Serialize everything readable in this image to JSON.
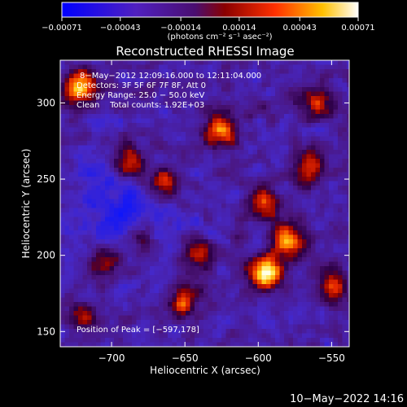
{
  "chart_data": {
    "type": "heatmap",
    "title": "Reconstructed RHESSI Image",
    "xlabel": "Heliocentric X (arcsec)",
    "ylabel": "Heliocentric Y (arcsec)",
    "xlim": [
      -735,
      -538
    ],
    "ylim": [
      140,
      328
    ],
    "x_ticks": [
      -700,
      -650,
      -600,
      -550
    ],
    "x_tick_labels": [
      "−700",
      "−650",
      "−600",
      "−550"
    ],
    "y_ticks": [
      150,
      200,
      250,
      300
    ],
    "y_tick_labels": [
      "150",
      "200",
      "250",
      "300"
    ],
    "colorbar": {
      "min": -0.00071,
      "max": 0.00071,
      "ticks": [
        -0.00071,
        -0.00043,
        -0.00014,
        0.00014,
        0.00043,
        0.00071
      ],
      "tick_labels": [
        "−0.00071",
        "−0.00043",
        "−0.00014",
        "0.00014",
        "0.00043",
        "0.00071"
      ],
      "unit_label": "(photons cm⁻² s⁻¹ asec⁻²)",
      "colormap": "blue-purple-red-yellow-white"
    },
    "annotations": [
      "8−May−2012 12:09:16.000 to 12:11:04.000",
      "Detectors: 3F 5F 6F 7F 8F, Att 0",
      "Energy Range: 25.0 − 50.0 keV",
      "Clean    Total counts: 1.92E+03"
    ],
    "peak_label": "Position of Peak = [−597,178]",
    "peak": [
      -597,
      178
    ],
    "sources": [
      {
        "x": -595,
        "y": 188,
        "value": 1.0
      },
      {
        "x": -580,
        "y": 210,
        "value": 0.8
      },
      {
        "x": -722,
        "y": 310,
        "value": 0.9
      },
      {
        "x": -625,
        "y": 282,
        "value": 0.7
      },
      {
        "x": -665,
        "y": 247,
        "value": 0.6
      },
      {
        "x": -688,
        "y": 262,
        "value": 0.6
      },
      {
        "x": -595,
        "y": 235,
        "value": 0.55
      },
      {
        "x": -565,
        "y": 258,
        "value": 0.55
      },
      {
        "x": -640,
        "y": 200,
        "value": 0.5
      },
      {
        "x": -650,
        "y": 170,
        "value": 0.55
      },
      {
        "x": -705,
        "y": 195,
        "value": 0.5
      },
      {
        "x": -680,
        "y": 210,
        "value": 0.45
      },
      {
        "x": -560,
        "y": 300,
        "value": 0.5
      },
      {
        "x": -550,
        "y": 180,
        "value": 0.45
      },
      {
        "x": -720,
        "y": 160,
        "value": 0.4
      }
    ]
  },
  "footer": {
    "timestamp": "10−May−2022 14:16"
  }
}
